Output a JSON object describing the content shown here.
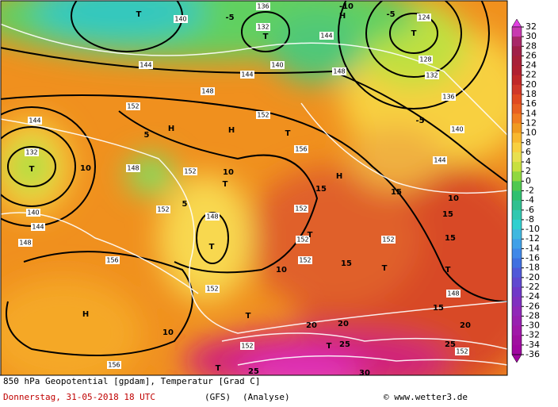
{
  "map": {
    "labels": [
      "140",
      "136",
      "132",
      "T",
      "T",
      "-5",
      "H",
      "-10",
      "-5",
      "124",
      "T",
      "128",
      "132",
      "136",
      "140",
      "-5",
      "144",
      "144",
      "144",
      "148",
      "148",
      "140",
      "152",
      "152",
      "5",
      "H",
      "H",
      "T",
      "156",
      "144",
      "132",
      "T",
      "10",
      "148",
      "152",
      "10",
      "T",
      "15",
      "H",
      "15",
      "144",
      "152",
      "5",
      "148",
      "T",
      "140",
      "144",
      "148",
      "152",
      "152",
      "T",
      "15",
      "10",
      "152",
      "15",
      "156",
      "10",
      "152",
      "15",
      "T",
      "T",
      "152",
      "H",
      "148",
      "10",
      "T",
      "20",
      "20",
      "15",
      "20",
      "152",
      "T",
      "25",
      "25",
      "152",
      "156",
      "T",
      "25",
      "30"
    ]
  },
  "legend": {
    "ticks": [
      32,
      30,
      28,
      26,
      24,
      22,
      20,
      18,
      16,
      14,
      12,
      10,
      8,
      6,
      4,
      2,
      0,
      -2,
      -4,
      -6,
      -8,
      -10,
      -12,
      -14,
      -16,
      -18,
      -20,
      -22,
      -24,
      -26,
      -28,
      -30,
      -32,
      -34,
      -36
    ]
  },
  "footer": {
    "title": "850 hPa Geopotential [gpdam], Temperatur [Grad C]",
    "date": "Donnerstag, 31-05-2018  18 UTC",
    "model": "(GFS)",
    "mode": "(Analyse)",
    "credit": "© www.wetter3.de"
  }
}
